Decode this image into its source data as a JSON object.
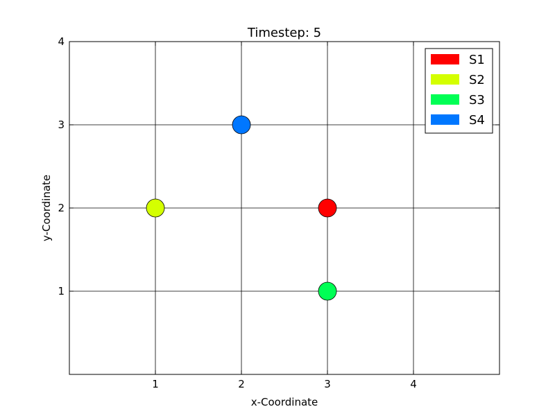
{
  "chart_data": {
    "type": "scatter",
    "title": "Timestep: 5",
    "xlabel": "x-Coordinate",
    "ylabel": "y-Coordinate",
    "xlim": [
      0,
      5
    ],
    "ylim": [
      0,
      4
    ],
    "xticks": [
      1,
      2,
      3,
      4
    ],
    "yticks": [
      1,
      2,
      3,
      4
    ],
    "xtick_labels": [
      "1",
      "2",
      "3",
      "4"
    ],
    "ytick_labels": [
      "1",
      "2",
      "3",
      "4"
    ],
    "grid": true,
    "legend_position": "top-right",
    "series": [
      {
        "name": "S1",
        "color": "#ff0000",
        "x": [
          3
        ],
        "y": [
          2
        ]
      },
      {
        "name": "S2",
        "color": "#d4ff00",
        "x": [
          1
        ],
        "y": [
          2
        ]
      },
      {
        "name": "S3",
        "color": "#00ff55",
        "x": [
          3
        ],
        "y": [
          1
        ]
      },
      {
        "name": "S4",
        "color": "#0077ff",
        "x": [
          2
        ],
        "y": [
          3
        ]
      }
    ]
  }
}
